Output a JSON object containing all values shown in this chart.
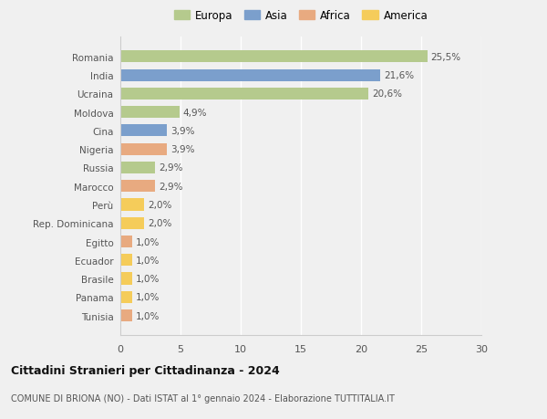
{
  "countries": [
    "Romania",
    "India",
    "Ucraina",
    "Moldova",
    "Cina",
    "Nigeria",
    "Russia",
    "Marocco",
    "Perù",
    "Rep. Dominicana",
    "Egitto",
    "Ecuador",
    "Brasile",
    "Panama",
    "Tunisia"
  ],
  "values": [
    25.5,
    21.6,
    20.6,
    4.9,
    3.9,
    3.9,
    2.9,
    2.9,
    2.0,
    2.0,
    1.0,
    1.0,
    1.0,
    1.0,
    1.0
  ],
  "labels": [
    "25,5%",
    "21,6%",
    "20,6%",
    "4,9%",
    "3,9%",
    "3,9%",
    "2,9%",
    "2,9%",
    "2,0%",
    "2,0%",
    "1,0%",
    "1,0%",
    "1,0%",
    "1,0%",
    "1,0%"
  ],
  "colors": [
    "#b5ca8d",
    "#7b9fcc",
    "#b5ca8d",
    "#b5ca8d",
    "#7b9fcc",
    "#e8aa80",
    "#b5ca8d",
    "#e8aa80",
    "#f5cc5a",
    "#f5cc5a",
    "#e8aa80",
    "#f5cc5a",
    "#f5cc5a",
    "#f5cc5a",
    "#e8aa80"
  ],
  "legend": {
    "Europa": "#b5ca8d",
    "Asia": "#7b9fcc",
    "Africa": "#e8aa80",
    "America": "#f5cc5a"
  },
  "title": "Cittadini Stranieri per Cittadinanza - 2024",
  "subtitle": "COMUNE DI BRIONA (NO) - Dati ISTAT al 1° gennaio 2024 - Elaborazione TUTTITALIA.IT",
  "xlim": [
    0,
    30
  ],
  "xticks": [
    0,
    5,
    10,
    15,
    20,
    25,
    30
  ],
  "background_color": "#f0f0f0",
  "plot_bg_color": "#f0f0f0",
  "grid_color": "#ffffff",
  "bar_height": 0.65
}
